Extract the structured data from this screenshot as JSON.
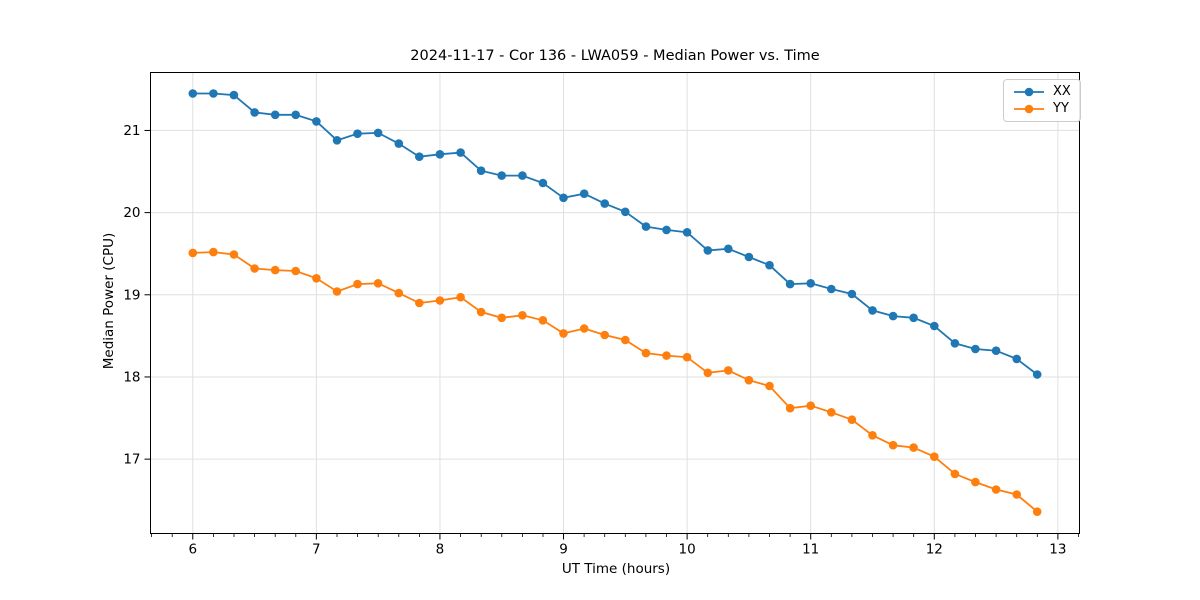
{
  "chart_data": {
    "type": "line",
    "title": "2024-11-17 - Cor 136 - LWA059 - Median Power vs. Time",
    "xlabel": "UT Time (hours)",
    "ylabel": "Median Power (CPU)",
    "xlim": [
      5.658,
      13.175
    ],
    "ylim": [
      16.095,
      21.705
    ],
    "xticks": [
      6,
      7,
      8,
      9,
      10,
      11,
      12,
      13
    ],
    "yticks": [
      17,
      18,
      19,
      20,
      21
    ],
    "x_minor_step": 0.16667,
    "grid": true,
    "grid_color": "#e0e0e0",
    "legend_position": "upper right",
    "x": [
      6.0,
      6.167,
      6.333,
      6.5,
      6.667,
      6.833,
      7.0,
      7.167,
      7.333,
      7.5,
      7.667,
      7.833,
      8.0,
      8.167,
      8.333,
      8.5,
      8.667,
      8.833,
      9.0,
      9.167,
      9.333,
      9.5,
      9.667,
      9.833,
      10.0,
      10.167,
      10.333,
      10.5,
      10.667,
      10.833,
      11.0,
      11.167,
      11.333,
      11.5,
      11.667,
      11.833,
      12.0,
      12.167,
      12.333,
      12.5,
      12.667,
      12.833
    ],
    "series": [
      {
        "name": "XX",
        "color": "#1f77b4",
        "values": [
          21.45,
          21.45,
          21.43,
          21.22,
          21.19,
          21.19,
          21.11,
          20.88,
          20.96,
          20.97,
          20.84,
          20.68,
          20.71,
          20.73,
          20.51,
          20.45,
          20.45,
          20.36,
          20.18,
          20.23,
          20.11,
          20.01,
          19.83,
          19.79,
          19.76,
          19.54,
          19.56,
          19.46,
          19.36,
          19.13,
          19.14,
          19.07,
          19.01,
          18.81,
          18.74,
          18.72,
          18.62,
          18.41,
          18.34,
          18.32,
          18.22,
          18.03
        ]
      },
      {
        "name": "YY",
        "color": "#ff7f0e",
        "values": [
          19.51,
          19.52,
          19.49,
          19.32,
          19.3,
          19.29,
          19.2,
          19.04,
          19.13,
          19.14,
          19.02,
          18.9,
          18.93,
          18.97,
          18.79,
          18.72,
          18.75,
          18.69,
          18.53,
          18.59,
          18.51,
          18.45,
          18.29,
          18.26,
          18.24,
          18.05,
          18.08,
          17.96,
          17.89,
          17.62,
          17.65,
          17.57,
          17.48,
          17.29,
          17.17,
          17.14,
          17.03,
          16.82,
          16.72,
          16.63,
          16.57,
          16.36
        ]
      }
    ]
  }
}
